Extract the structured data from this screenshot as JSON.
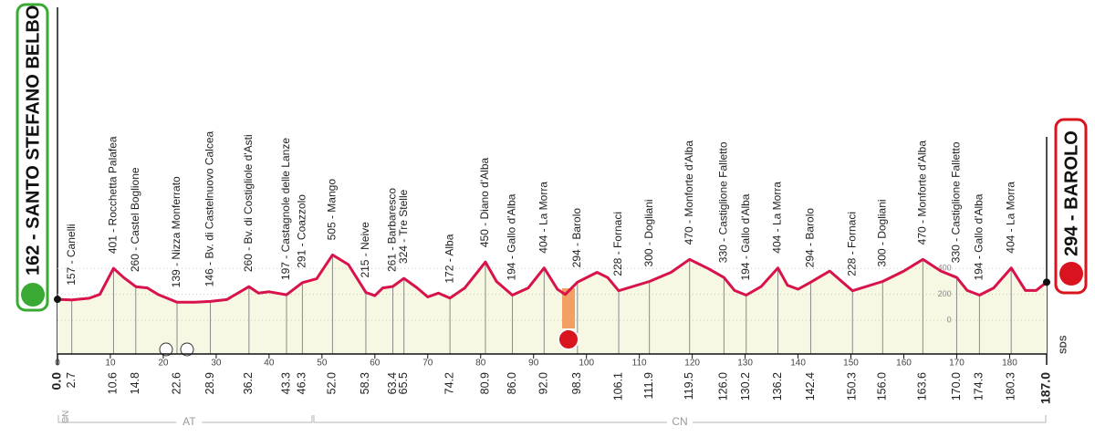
{
  "chart_data": {
    "type": "area",
    "x": [
      0,
      2.7,
      6,
      8,
      10.6,
      12.5,
      14.8,
      17,
      19,
      22.6,
      26,
      28.9,
      32,
      36.2,
      38,
      40,
      43.3,
      46.3,
      49,
      52,
      55,
      58.3,
      60,
      61.5,
      63.4,
      65.5,
      68,
      70,
      72,
      74.2,
      77,
      80.9,
      83,
      86,
      89,
      92,
      94.5,
      96,
      98.3,
      102,
      104,
      106.1,
      111.9,
      116,
      119.5,
      123,
      126,
      128,
      130.2,
      133,
      136.2,
      138,
      140,
      142.4,
      146,
      150.3,
      156,
      160,
      163.6,
      167,
      170,
      172,
      174.3,
      177,
      180.3,
      183,
      185,
      187
    ],
    "values": [
      162,
      157,
      170,
      200,
      401,
      330,
      260,
      250,
      200,
      139,
      140,
      146,
      160,
      260,
      210,
      220,
      197,
      291,
      320,
      505,
      430,
      215,
      190,
      250,
      261,
      324,
      250,
      180,
      210,
      172,
      250,
      450,
      300,
      194,
      250,
      404,
      240,
      200,
      294,
      370,
      330,
      228,
      300,
      370,
      470,
      400,
      330,
      230,
      194,
      260,
      404,
      270,
      240,
      294,
      380,
      228,
      300,
      380,
      470,
      380,
      330,
      230,
      194,
      250,
      404,
      230,
      230,
      294
    ],
    "color": "#d8124a",
    "fill": "#f6f8e4",
    "xlim": [
      0,
      187
    ],
    "ylim": [
      -260,
      2200
    ],
    "xticks": [
      0,
      10,
      20,
      30,
      40,
      50,
      60,
      70,
      80,
      90,
      100,
      110,
      120,
      130,
      140,
      150,
      160,
      170,
      180
    ],
    "yticks": [
      0,
      200,
      400
    ],
    "start": {
      "label": "162 - SANTO STEFANO BELBO",
      "km": {
        "value": 0,
        "label": "0.0"
      }
    },
    "finish": {
      "label": "294 - BAROLO",
      "km": {
        "value": 187,
        "label": "187.0"
      }
    },
    "waypoints": [
      {
        "label": "157 - Canelli",
        "km": 2.7
      },
      {
        "label": "401 - Rocchetta Palafea",
        "km": 10.6
      },
      {
        "label": "260 - Castel Boglione",
        "km": 14.8
      },
      {
        "label": "139 - Nizza Monferrato",
        "km": 22.6
      },
      {
        "label": "146 - Bv. di Castelnuovo Calcea",
        "km": 28.9
      },
      {
        "label": "260 - Bv. di Costigliole d'Asti",
        "km": 36.2
      },
      {
        "label": "197 - Castagnole delle Lanze",
        "km": 43.3
      },
      {
        "label": "291 - Coazzolo",
        "km": 46.3
      },
      {
        "label": "505 - Mango",
        "km": {
          "value": 52,
          "label": "52.0"
        }
      },
      {
        "label": "215 - Neive",
        "km": 58.3
      },
      {
        "label": "261 - Barbaresco",
        "km": 63.4
      },
      {
        "label": "324 - Tre Stelle",
        "km": 65.5
      },
      {
        "label": "172 - Alba",
        "km": 74.2
      },
      {
        "label": "450 - Diano d'Alba",
        "km": 80.9
      },
      {
        "label": "194 - Gallo d'Alba",
        "km": {
          "value": 86,
          "label": "86.0"
        }
      },
      {
        "label": "404 - La Morra",
        "km": {
          "value": 92,
          "label": "92.0"
        }
      },
      {
        "label": "294 - Barolo",
        "km": 98.3
      },
      {
        "label": "228 - Fornaci",
        "km": 106.1
      },
      {
        "label": "300 - Dogliani",
        "km": 111.9
      },
      {
        "label": "470 - Monforte d'Alba",
        "km": 119.5
      },
      {
        "label": "330 - Castiglione Falletto",
        "km": {
          "value": 126,
          "label": "126.0"
        }
      },
      {
        "label": "194 - Gallo d'Alba",
        "km": 130.2
      },
      {
        "label": "404 - La Morra",
        "km": 136.2
      },
      {
        "label": "294 - Barolo",
        "km": 142.4
      },
      {
        "label": "228 - Fornaci",
        "km": 150.3
      },
      {
        "label": "300 - Dogliani",
        "km": {
          "value": 156,
          "label": "156.0"
        }
      },
      {
        "label": "470 - Monforte d'Alba",
        "km": 163.6
      },
      {
        "label": "330 - Castiglione Falletto",
        "km": {
          "value": 170,
          "label": "170.0"
        }
      },
      {
        "label": "194 - Gallo d'Alba",
        "km": 174.3
      },
      {
        "label": "404 - La Morra",
        "km": 180.3
      }
    ],
    "regions": [
      {
        "label": "CN",
        "from": 0,
        "to": 1.5
      },
      {
        "label": "AT",
        "from": 1.5,
        "to": 48.3
      },
      {
        "label": "CN",
        "from": 48.3,
        "to": 187
      }
    ],
    "note": "SDS"
  }
}
